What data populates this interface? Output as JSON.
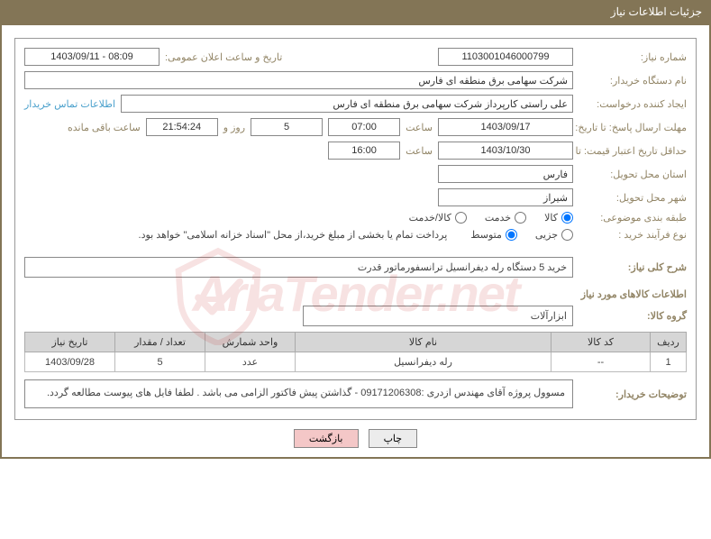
{
  "panel_title": "جزئیات اطلاعات نیاز",
  "labels": {
    "need_no": "شماره نیاز:",
    "announce_date": "تاریخ و ساعت اعلان عمومی:",
    "buyer_org": "نام دستگاه خریدار:",
    "requester": "ایجاد کننده درخواست:",
    "contact_link": "اطلاعات تماس خریدار",
    "response_deadline": "مهلت ارسال پاسخ: تا تاریخ:",
    "saat": "ساعت",
    "rooz_va": "روز و",
    "remaining": "ساعت باقی مانده",
    "price_validity": "حداقل تاریخ اعتبار قیمت: تا تاریخ:",
    "delivery_province": "استان محل تحویل:",
    "delivery_city": "شهر محل تحویل:",
    "category": "طبقه بندی موضوعی:",
    "process_type": "نوع فرآیند خرید :",
    "payment_note": "پرداخت تمام یا بخشی از مبلغ خرید،از محل \"اسناد خزانه اسلامی\" خواهد بود.",
    "general_desc": "شرح کلی نیاز:",
    "goods_info_title": "اطلاعات کالاهای مورد نیاز",
    "goods_group": "گروه کالا:",
    "buyer_notes": "توضیحات خریدار:"
  },
  "values": {
    "need_no": "1103001046000799",
    "announce_date": "1403/09/11 - 08:09",
    "buyer_org": "شرکت سهامی برق منطقه ای فارس",
    "requester": "علی راستی کارپرداز شرکت سهامی برق منطقه ای فارس",
    "response_date": "1403/09/17",
    "response_time": "07:00",
    "days_left": "5",
    "time_left": "21:54:24",
    "validity_date": "1403/10/30",
    "validity_time": "16:00",
    "province": "فارس",
    "city": "شیراز",
    "general_desc": "خرید 5 دستگاه رله دیفرانسیل ترانسفورماتور قدرت",
    "goods_group": "ابزارآلات",
    "buyer_notes": "مسوول پروژه آقای مهندس ازدری :09171206308 - گذاشتن پیش فاکتور الزامی می باشد . لطفا فایل های پیوست مطالعه گردد."
  },
  "category_radios": {
    "options": [
      {
        "label": "کالا",
        "checked": true
      },
      {
        "label": "خدمت",
        "checked": false
      },
      {
        "label": "کالا/خدمت",
        "checked": false
      }
    ]
  },
  "process_radios": {
    "options": [
      {
        "label": "جزیی",
        "checked": false
      },
      {
        "label": "متوسط",
        "checked": true
      }
    ]
  },
  "table": {
    "headers": [
      "ردیف",
      "کد کالا",
      "نام کالا",
      "واحد شمارش",
      "تعداد / مقدار",
      "تاریخ نیاز"
    ],
    "rows": [
      [
        "1",
        "--",
        "رله دیفرانسیل",
        "عدد",
        "5",
        "1403/09/28"
      ]
    ]
  },
  "buttons": {
    "print": "چاپ",
    "back": "بازگشت"
  },
  "watermark_text": "AriaTender.net",
  "colors": {
    "header_bg": "#837556",
    "label_color": "#928566",
    "link_color": "#4aa0cc",
    "th_bg": "#d6d6d6"
  }
}
